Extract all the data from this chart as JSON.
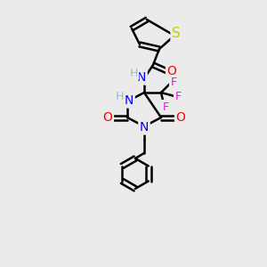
{
  "bg_color": "#ebebeb",
  "bond_color": "#000000",
  "bond_width": 1.8,
  "atom_colors": {
    "N": "#0000ff",
    "O": "#ff0000",
    "S": "#cccc00",
    "F": "#ff00ff",
    "H": "#7ec8c8",
    "C": "#000000"
  },
  "font_size": 9,
  "figsize": [
    3.0,
    3.0
  ],
  "dpi": 100
}
